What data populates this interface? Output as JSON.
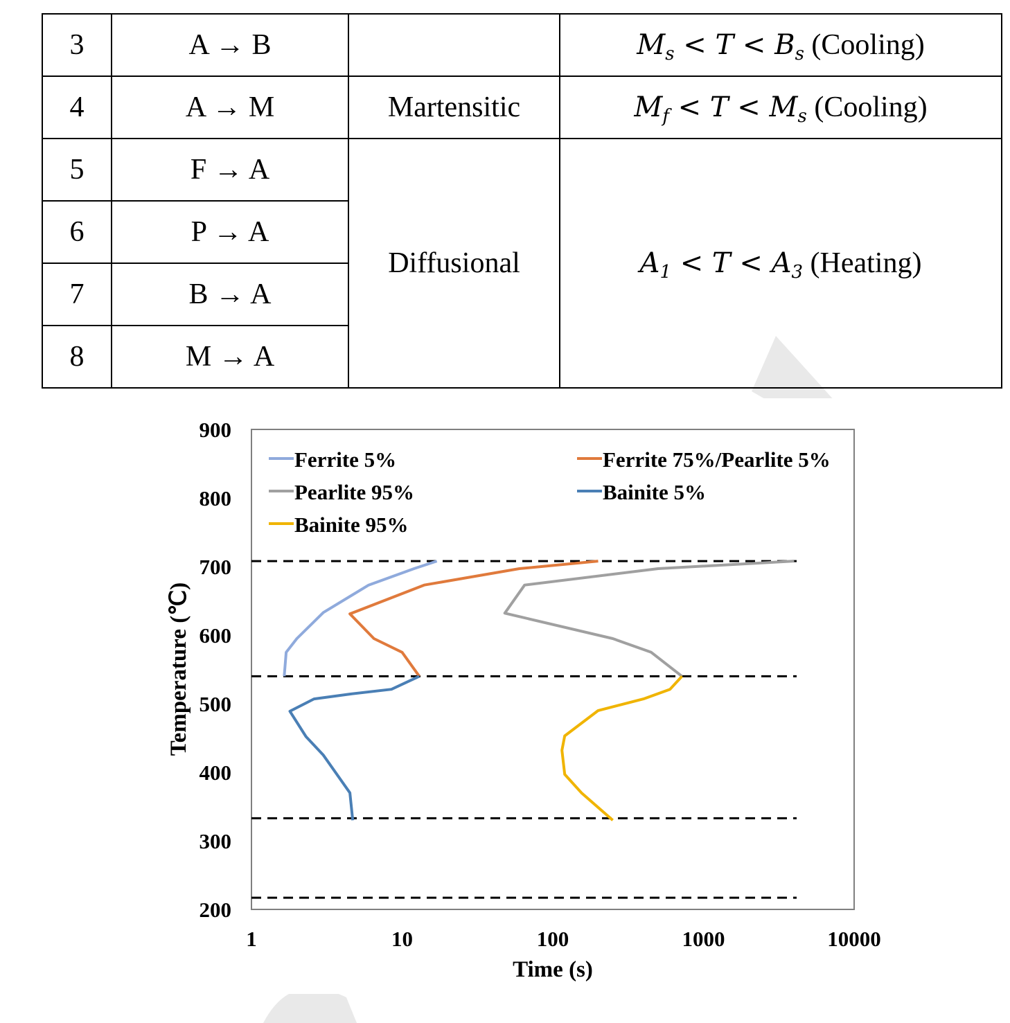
{
  "table": {
    "rows": [
      {
        "num": "3",
        "transformation": "A → B",
        "type": "",
        "condition": {
          "parts": [
            "M",
            "s",
            " < T < ",
            "B",
            "s"
          ],
          "note": " (Cooling)"
        }
      },
      {
        "num": "4",
        "transformation": "A → M",
        "type": "Martensitic",
        "condition": {
          "parts": [
            "M",
            "f",
            " < T < ",
            "M",
            "s"
          ],
          "note": " (Cooling)"
        }
      },
      {
        "num": "5",
        "transformation": "F → A",
        "type": "Diffusional",
        "condition": {
          "parts": [
            "A",
            "1",
            " < T < ",
            "A",
            "3"
          ],
          "note": " (Heating)"
        }
      },
      {
        "num": "6",
        "transformation": "P → A"
      },
      {
        "num": "7",
        "transformation": "B → A"
      },
      {
        "num": "8",
        "transformation": "M → A"
      }
    ]
  },
  "chart_data": {
    "type": "line",
    "xlabel": "Time (s)",
    "ylabel": "Temperature (℃)",
    "x_scale": "log",
    "xlim": [
      1,
      10000
    ],
    "ylim": [
      200,
      900
    ],
    "x_ticks": [
      "1",
      "10",
      "100",
      "1000",
      "10000"
    ],
    "y_ticks": [
      "200",
      "300",
      "400",
      "500",
      "600",
      "700",
      "800",
      "900"
    ],
    "legend_position": "top",
    "grid": false,
    "series": [
      {
        "name": "Ferrite 5%",
        "color": "#8faadc",
        "points": [
          [
            17,
            708
          ],
          [
            12,
            697
          ],
          [
            6,
            673
          ],
          [
            3,
            633
          ],
          [
            2,
            595
          ],
          [
            1.7,
            575
          ],
          [
            1.65,
            540
          ]
        ]
      },
      {
        "name": "Ferrite 75%/Pearlite 5%",
        "color": "#e07a3c",
        "points": [
          [
            200,
            708
          ],
          [
            60,
            697
          ],
          [
            14,
            673
          ],
          [
            4.5,
            631
          ],
          [
            6.5,
            595
          ],
          [
            10,
            575
          ],
          [
            13,
            540
          ]
        ]
      },
      {
        "name": "Pearlite 95%",
        "color": "#a0a0a0",
        "points": [
          [
            4000,
            708
          ],
          [
            500,
            697
          ],
          [
            65,
            673
          ],
          [
            48,
            632
          ],
          [
            250,
            595
          ],
          [
            450,
            575
          ],
          [
            720,
            540
          ]
        ]
      },
      {
        "name": "Bainite 5%",
        "color": "#4a7fb5",
        "points": [
          [
            13,
            540
          ],
          [
            8.5,
            521
          ],
          [
            4.5,
            514
          ],
          [
            2.6,
            507
          ],
          [
            1.8,
            489
          ],
          [
            2.3,
            452
          ],
          [
            3,
            425
          ],
          [
            4.5,
            370
          ],
          [
            4.7,
            330
          ]
        ]
      },
      {
        "name": "Bainite 95%",
        "color": "#f0b400",
        "points": [
          [
            720,
            540
          ],
          [
            600,
            521
          ],
          [
            400,
            507
          ],
          [
            200,
            490
          ],
          [
            120,
            453
          ],
          [
            115,
            432
          ],
          [
            120,
            397
          ],
          [
            155,
            370
          ],
          [
            250,
            330
          ]
        ]
      }
    ],
    "reference_lines_y": [
      708,
      540,
      333,
      217
    ]
  }
}
